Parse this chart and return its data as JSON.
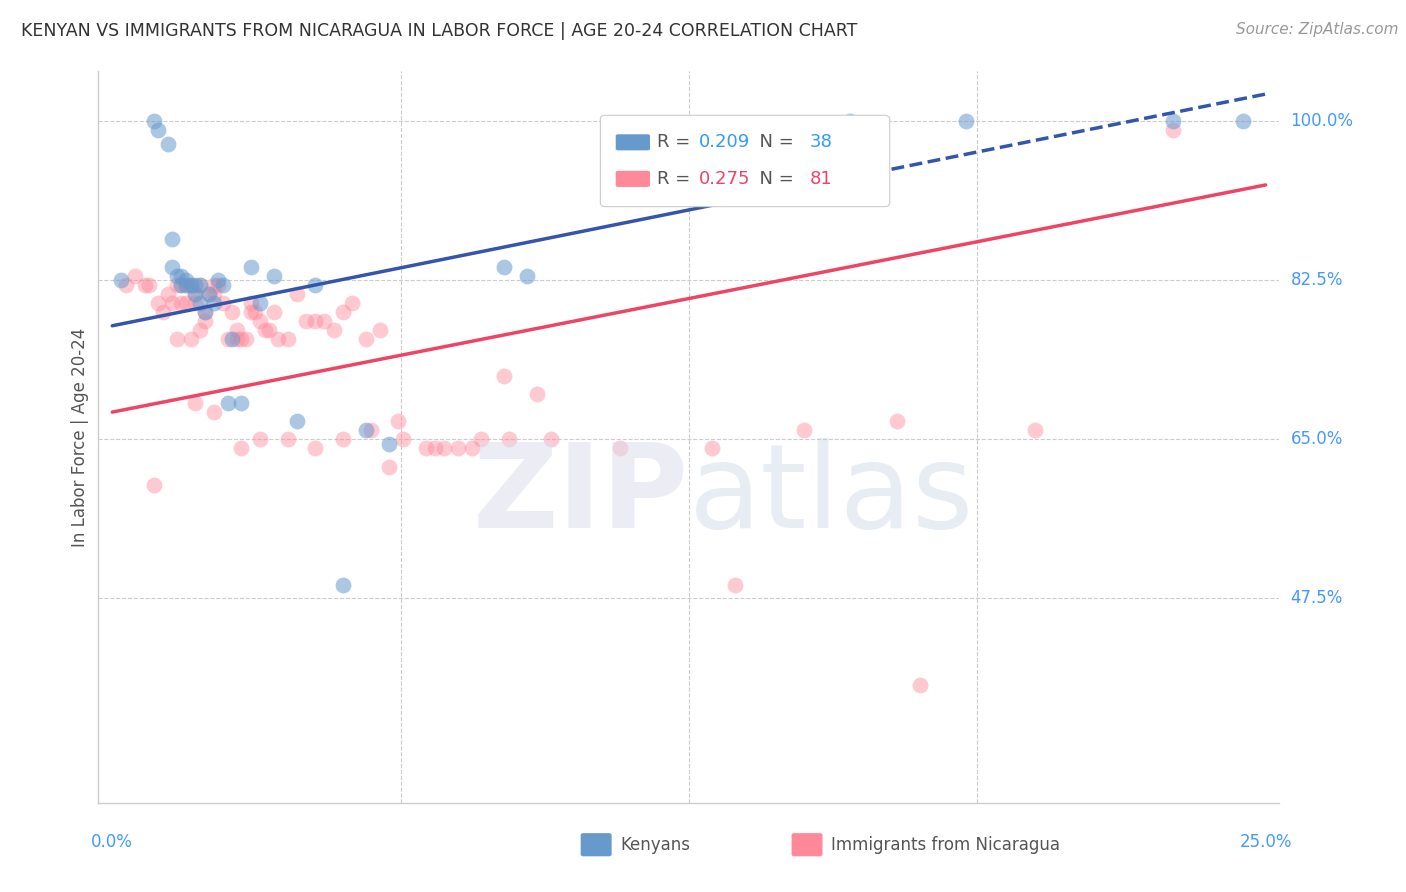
{
  "title": "KENYAN VS IMMIGRANTS FROM NICARAGUA IN LABOR FORCE | AGE 20-24 CORRELATION CHART",
  "source": "Source: ZipAtlas.com",
  "ylabel": "In Labor Force | Age 20-24",
  "blue_R": 0.209,
  "blue_N": 38,
  "pink_R": 0.275,
  "pink_N": 81,
  "blue_color": "#6699CC",
  "pink_color": "#FF8899",
  "blue_line_color": "#3355AA",
  "pink_line_color": "#EE4466",
  "xlim": [
    0.0,
    0.25
  ],
  "ylim": [
    0.25,
    1.055
  ],
  "blue_line_x0": 0.0,
  "blue_line_y0": 0.775,
  "blue_line_x1": 0.25,
  "blue_line_y1": 1.03,
  "pink_line_x0": 0.0,
  "pink_line_y0": 0.68,
  "pink_line_x1": 0.25,
  "pink_line_y1": 0.93,
  "blue_x": [
    0.002,
    0.009,
    0.01,
    0.012,
    0.013,
    0.013,
    0.014,
    0.015,
    0.015,
    0.016,
    0.016,
    0.017,
    0.018,
    0.018,
    0.019,
    0.019,
    0.02,
    0.021,
    0.022,
    0.023,
    0.024,
    0.025,
    0.026,
    0.028,
    0.03,
    0.032,
    0.035,
    0.04,
    0.044,
    0.05,
    0.055,
    0.06,
    0.085,
    0.09,
    0.16,
    0.185,
    0.23,
    0.245
  ],
  "blue_y": [
    0.825,
    1.0,
    0.99,
    0.975,
    0.87,
    0.84,
    0.83,
    0.83,
    0.82,
    0.825,
    0.82,
    0.82,
    0.82,
    0.81,
    0.82,
    0.8,
    0.79,
    0.81,
    0.8,
    0.825,
    0.82,
    0.69,
    0.76,
    0.69,
    0.84,
    0.8,
    0.83,
    0.67,
    0.82,
    0.49,
    0.66,
    0.645,
    0.84,
    0.83,
    1.0,
    1.0,
    1.0,
    1.0
  ],
  "pink_x": [
    0.003,
    0.005,
    0.007,
    0.008,
    0.009,
    0.01,
    0.011,
    0.012,
    0.013,
    0.014,
    0.014,
    0.015,
    0.015,
    0.016,
    0.016,
    0.017,
    0.017,
    0.018,
    0.018,
    0.019,
    0.019,
    0.02,
    0.02,
    0.021,
    0.022,
    0.022,
    0.023,
    0.024,
    0.025,
    0.026,
    0.027,
    0.027,
    0.028,
    0.029,
    0.03,
    0.03,
    0.031,
    0.032,
    0.033,
    0.034,
    0.035,
    0.036,
    0.038,
    0.04,
    0.042,
    0.044,
    0.046,
    0.048,
    0.05,
    0.052,
    0.055,
    0.058,
    0.06,
    0.063,
    0.068,
    0.072,
    0.075,
    0.08,
    0.085,
    0.092,
    0.018,
    0.022,
    0.028,
    0.032,
    0.038,
    0.044,
    0.05,
    0.056,
    0.062,
    0.07,
    0.078,
    0.086,
    0.095,
    0.11,
    0.13,
    0.15,
    0.17,
    0.135,
    0.175,
    0.2,
    0.23
  ],
  "pink_y": [
    0.82,
    0.83,
    0.82,
    0.82,
    0.6,
    0.8,
    0.79,
    0.81,
    0.8,
    0.82,
    0.76,
    0.82,
    0.8,
    0.82,
    0.8,
    0.82,
    0.76,
    0.81,
    0.8,
    0.82,
    0.77,
    0.79,
    0.78,
    0.81,
    0.81,
    0.82,
    0.82,
    0.8,
    0.76,
    0.79,
    0.77,
    0.76,
    0.76,
    0.76,
    0.8,
    0.79,
    0.79,
    0.78,
    0.77,
    0.77,
    0.79,
    0.76,
    0.76,
    0.81,
    0.78,
    0.78,
    0.78,
    0.77,
    0.79,
    0.8,
    0.76,
    0.77,
    0.62,
    0.65,
    0.64,
    0.64,
    0.64,
    0.65,
    0.72,
    0.7,
    0.69,
    0.68,
    0.64,
    0.65,
    0.65,
    0.64,
    0.65,
    0.66,
    0.67,
    0.64,
    0.64,
    0.65,
    0.65,
    0.64,
    0.64,
    0.66,
    0.67,
    0.49,
    0.38,
    0.66,
    0.99
  ]
}
